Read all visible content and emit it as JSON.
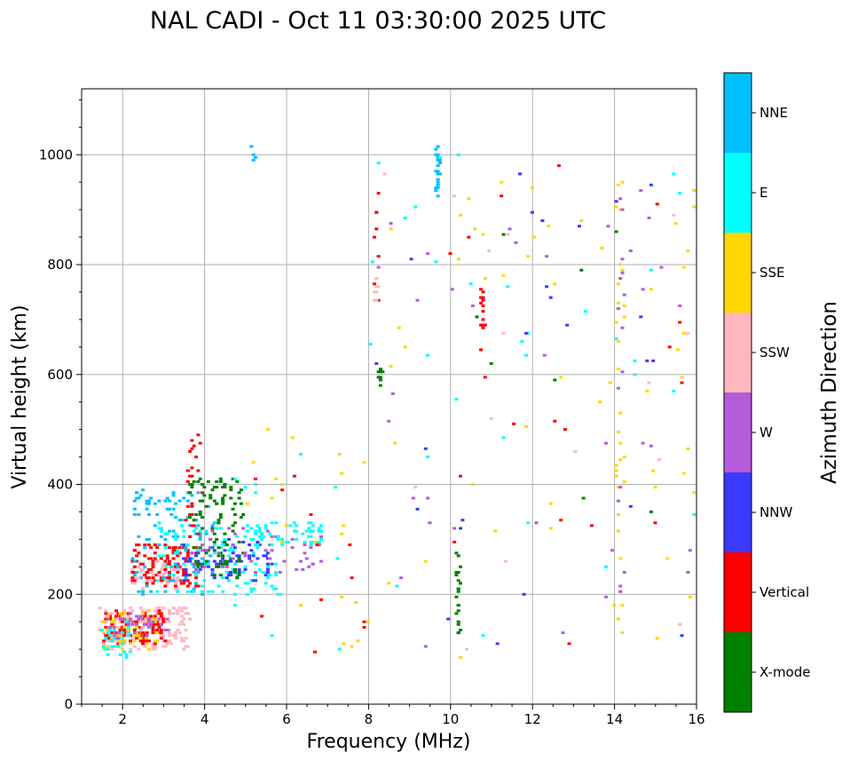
{
  "chart_data": {
    "type": "scatter",
    "title": "NAL CADI - Oct 11 03:30:00 2025 UTC",
    "xlabel": "Frequency (MHz)",
    "ylabel": "Virtual height (km)",
    "xlim": [
      1,
      16
    ],
    "ylim": [
      0,
      1120
    ],
    "xticks": [
      2,
      4,
      6,
      8,
      10,
      12,
      14,
      16
    ],
    "yticks": [
      0,
      200,
      400,
      600,
      800,
      1000
    ],
    "grid": true,
    "colorbar": {
      "label": "Azimuth Direction",
      "categories": [
        {
          "name": "X-mode",
          "color": "#008000"
        },
        {
          "name": "Vertical",
          "color": "#ff0000"
        },
        {
          "name": "NNW",
          "color": "#3a3aff"
        },
        {
          "name": "W",
          "color": "#b65bd9"
        },
        {
          "name": "SSW",
          "color": "#ffb6c1"
        },
        {
          "name": "SSE",
          "color": "#ffd700"
        },
        {
          "name": "E",
          "color": "#00ffff"
        },
        {
          "name": "NNE",
          "color": "#00bfff"
        }
      ]
    },
    "clusters": [
      {
        "category": "SSW",
        "fmin": 1.4,
        "fmax": 3.6,
        "hmin": 100,
        "hmax": 180,
        "n": 140,
        "seed": 11
      },
      {
        "category": "Vertical",
        "fmin": 1.5,
        "fmax": 3.0,
        "hmin": 110,
        "hmax": 170,
        "n": 110,
        "seed": 12
      },
      {
        "category": "SSE",
        "fmin": 1.4,
        "fmax": 2.8,
        "hmin": 100,
        "hmax": 170,
        "n": 50,
        "seed": 13
      },
      {
        "category": "W",
        "fmin": 1.6,
        "fmax": 3.2,
        "hmin": 120,
        "hmax": 165,
        "n": 40,
        "seed": 14
      },
      {
        "category": "E",
        "fmin": 1.4,
        "fmax": 2.2,
        "hmin": 85,
        "hmax": 150,
        "n": 30,
        "seed": 15
      },
      {
        "category": "Vertical",
        "fmin": 2.2,
        "fmax": 3.8,
        "hmin": 215,
        "hmax": 290,
        "n": 130,
        "seed": 21
      },
      {
        "category": "NNE",
        "fmin": 2.2,
        "fmax": 4.2,
        "hmin": 200,
        "hmax": 390,
        "n": 110,
        "seed": 22
      },
      {
        "category": "E",
        "fmin": 2.8,
        "fmax": 5.8,
        "hmin": 200,
        "hmax": 330,
        "n": 120,
        "seed": 23
      },
      {
        "category": "NNW",
        "fmin": 3.4,
        "fmax": 5.6,
        "hmin": 220,
        "hmax": 300,
        "n": 70,
        "seed": 24
      },
      {
        "category": "X-mode",
        "fmin": 3.6,
        "fmax": 4.9,
        "hmin": 230,
        "hmax": 410,
        "n": 110,
        "seed": 25
      },
      {
        "category": "W",
        "fmin": 3.6,
        "fmax": 6.8,
        "hmin": 240,
        "hmax": 320,
        "n": 50,
        "seed": 26
      },
      {
        "category": "E",
        "fmin": 5.0,
        "fmax": 6.8,
        "hmin": 290,
        "hmax": 330,
        "n": 50,
        "seed": 27
      },
      {
        "category": "SSW",
        "fmin": 2.2,
        "fmax": 3.4,
        "hmin": 210,
        "hmax": 260,
        "n": 35,
        "seed": 28
      },
      {
        "category": "Vertical",
        "fmin": 3.5,
        "fmax": 3.9,
        "hmin": 300,
        "hmax": 490,
        "n": 25,
        "seed": 29
      },
      {
        "category": "Vertical",
        "fmin": 8.1,
        "fmax": 8.2,
        "hmin": 700,
        "hmax": 980,
        "n": 8,
        "seed": 31
      },
      {
        "category": "SSW",
        "fmin": 8.1,
        "fmax": 8.2,
        "hmin": 720,
        "hmax": 780,
        "n": 8,
        "seed": 32
      },
      {
        "category": "X-mode",
        "fmin": 8.2,
        "fmax": 8.3,
        "hmin": 575,
        "hmax": 620,
        "n": 10,
        "seed": 33
      },
      {
        "category": "NNE",
        "fmin": 9.6,
        "fmax": 9.7,
        "hmin": 920,
        "hmax": 1020,
        "n": 22,
        "seed": 34
      },
      {
        "category": "X-mode",
        "fmin": 10.1,
        "fmax": 10.2,
        "hmin": 125,
        "hmax": 280,
        "n": 22,
        "seed": 35
      },
      {
        "category": "Vertical",
        "fmin": 10.7,
        "fmax": 10.8,
        "hmin": 685,
        "hmax": 760,
        "n": 14,
        "seed": 36
      },
      {
        "category": "SSE",
        "fmin": 8.0,
        "fmax": 16,
        "hmin": 80,
        "hmax": 1000,
        "n": 45,
        "seed": 41
      },
      {
        "category": "W",
        "fmin": 8.0,
        "fmax": 16,
        "hmin": 80,
        "hmax": 1000,
        "n": 35,
        "seed": 42
      },
      {
        "category": "E",
        "fmin": 8.0,
        "fmax": 16,
        "hmin": 80,
        "hmax": 1000,
        "n": 30,
        "seed": 43
      },
      {
        "category": "NNW",
        "fmin": 8.0,
        "fmax": 16,
        "hmin": 80,
        "hmax": 1000,
        "n": 25,
        "seed": 44
      },
      {
        "category": "Vertical",
        "fmin": 8.0,
        "fmax": 16,
        "hmin": 80,
        "hmax": 1000,
        "n": 20,
        "seed": 45
      },
      {
        "category": "SSW",
        "fmin": 8.0,
        "fmax": 16,
        "hmin": 80,
        "hmax": 1000,
        "n": 15,
        "seed": 46
      },
      {
        "category": "X-mode",
        "fmin": 10.5,
        "fmax": 16,
        "hmin": 300,
        "hmax": 900,
        "n": 8,
        "seed": 47
      },
      {
        "category": "SSE",
        "fmin": 14.0,
        "fmax": 14.2,
        "hmin": 90,
        "hmax": 950,
        "n": 28,
        "seed": 48
      },
      {
        "category": "W",
        "fmin": 14.0,
        "fmax": 14.2,
        "hmin": 90,
        "hmax": 950,
        "n": 14,
        "seed": 49
      },
      {
        "category": "SSE",
        "fmin": 15.6,
        "fmax": 16,
        "hmin": 300,
        "hmax": 950,
        "n": 12,
        "seed": 50
      },
      {
        "category": "SSE",
        "fmin": 5.0,
        "fmax": 8.0,
        "hmin": 90,
        "hmax": 500,
        "n": 22,
        "seed": 51
      },
      {
        "category": "Vertical",
        "fmin": 5.0,
        "fmax": 8.0,
        "hmin": 90,
        "hmax": 460,
        "n": 12,
        "seed": 52
      },
      {
        "category": "E",
        "fmin": 4.0,
        "fmax": 7.5,
        "hmin": 90,
        "hmax": 460,
        "n": 14,
        "seed": 53
      },
      {
        "category": "NNE",
        "fmin": 5.1,
        "fmax": 5.2,
        "hmin": 990,
        "hmax": 1015,
        "n": 4,
        "seed": 54
      }
    ]
  }
}
